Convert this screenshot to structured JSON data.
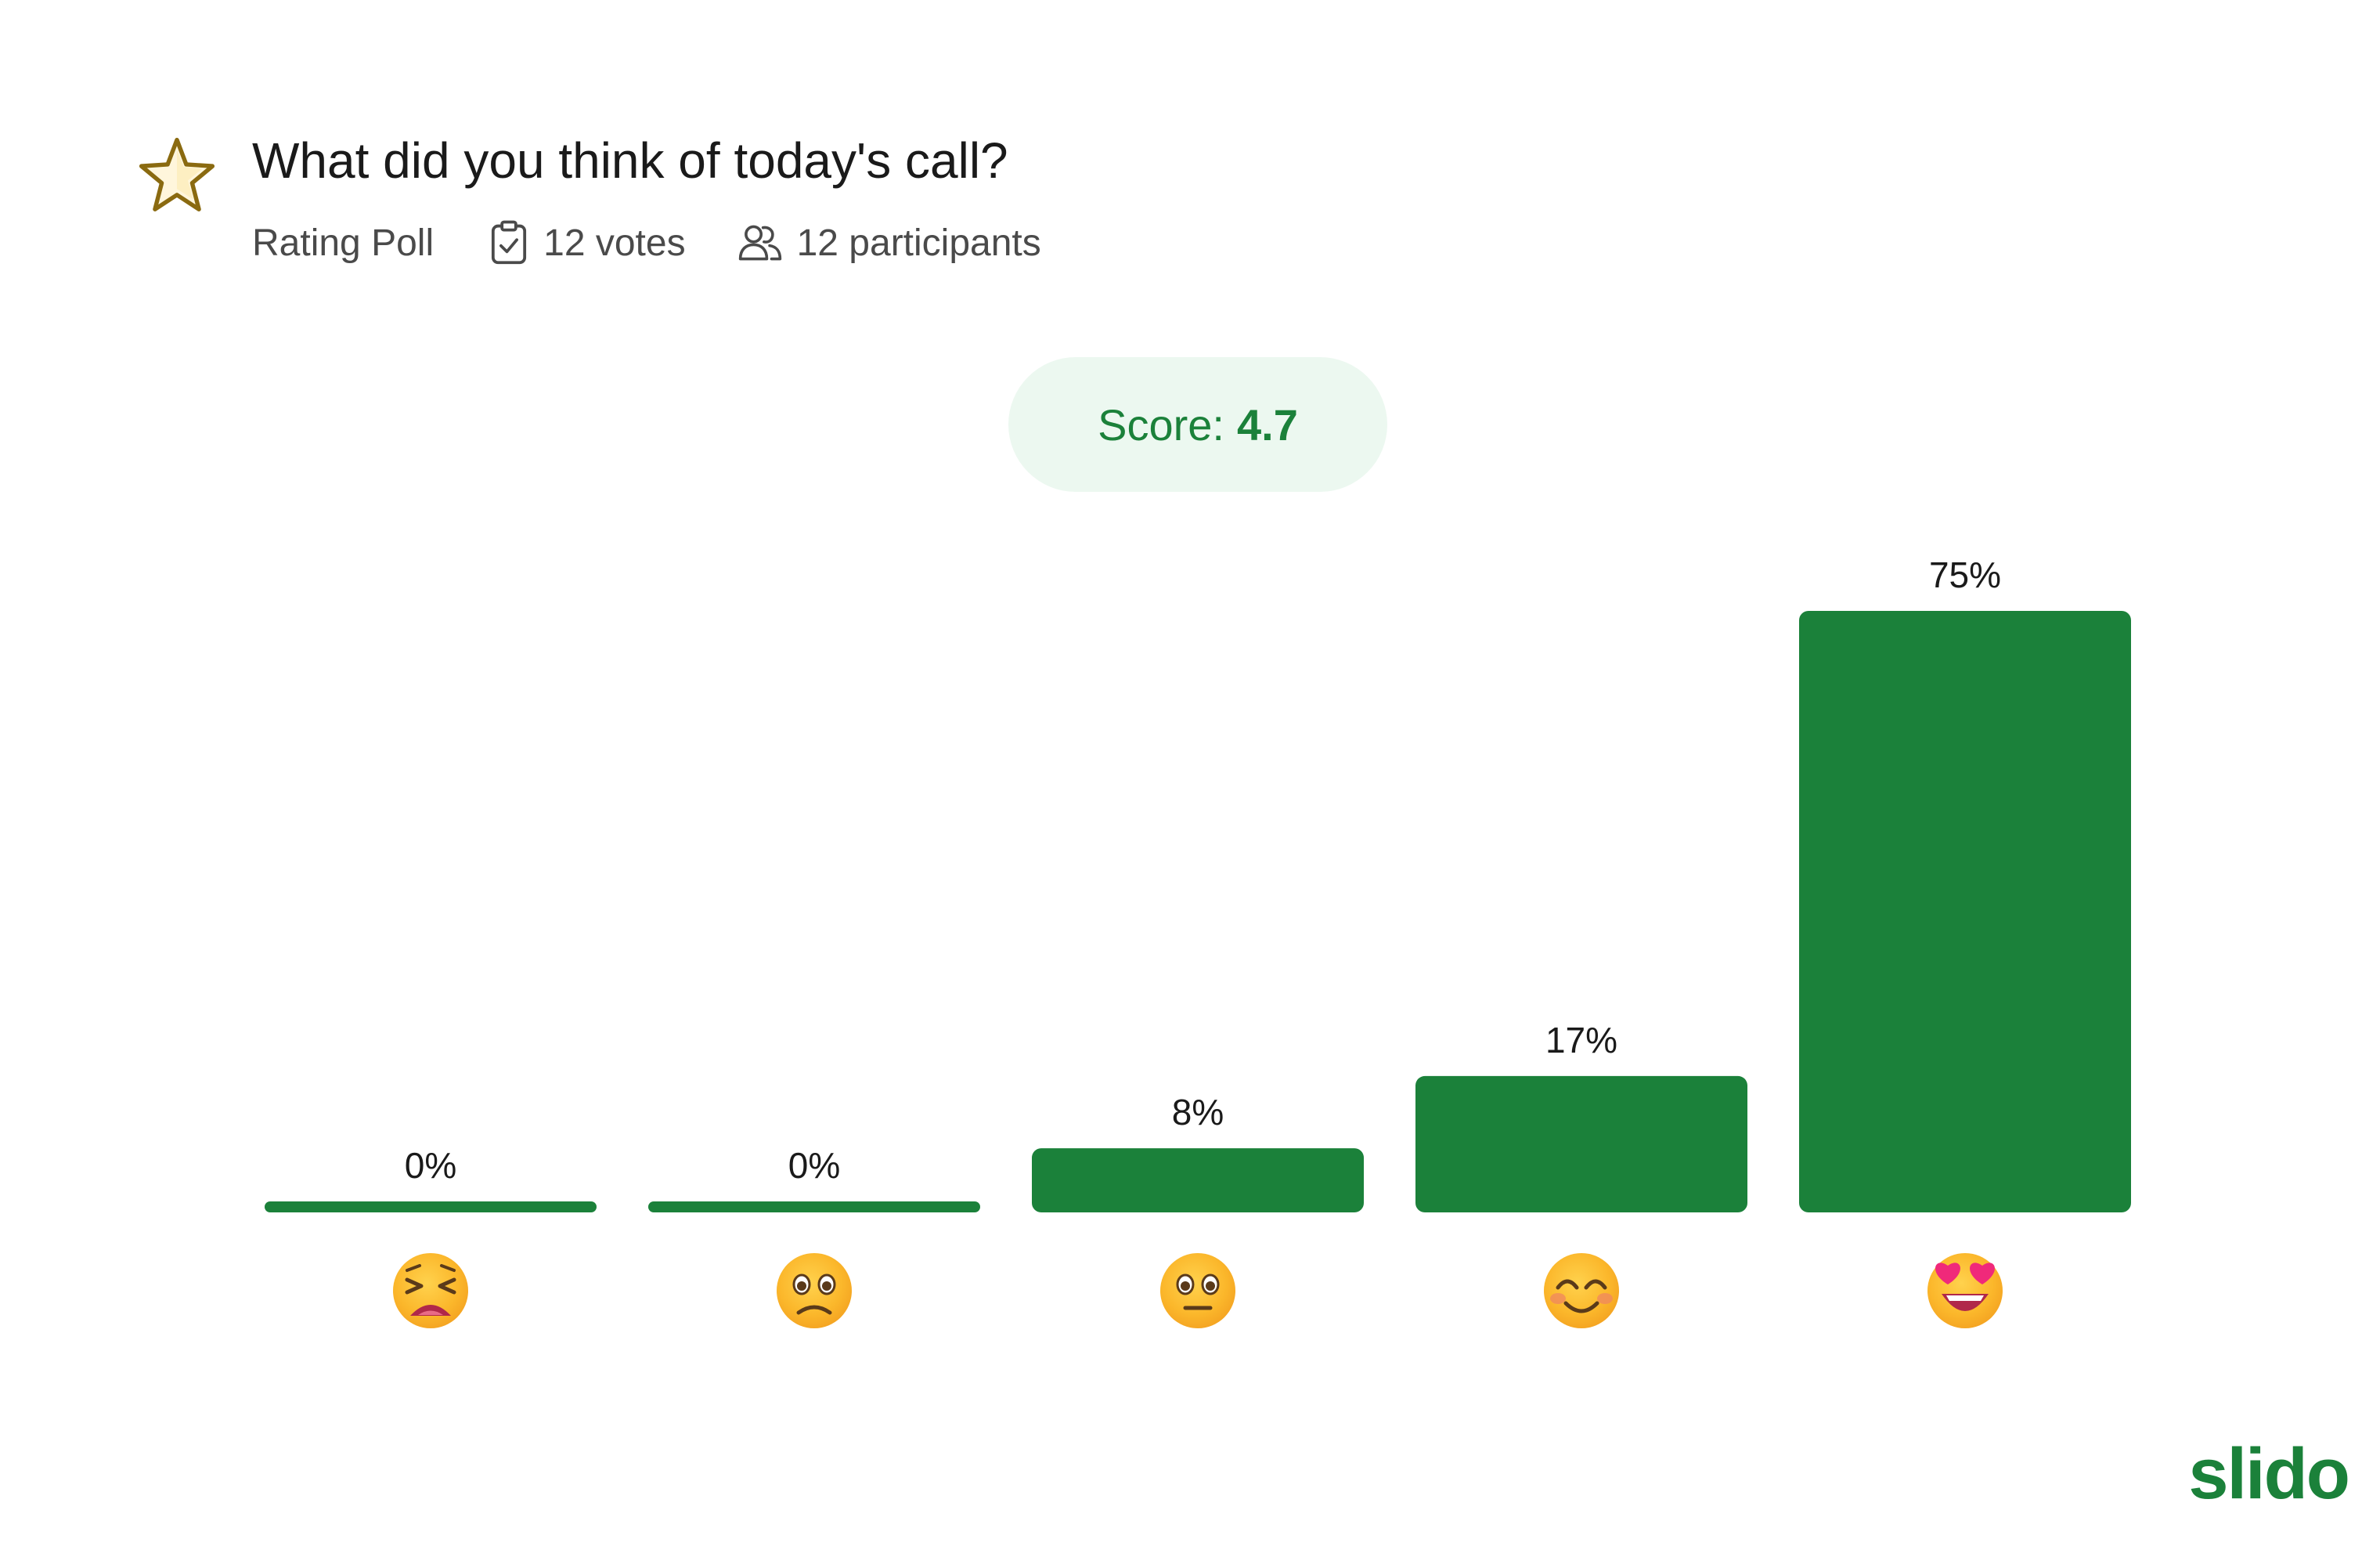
{
  "poll": {
    "title": "What did you think of today's call?",
    "type_label": "Rating Poll",
    "votes_label": "12 votes",
    "participants_label": "12 participants",
    "score_label": "Score:",
    "score_value": "4.7"
  },
  "icons": {
    "poll_type": "star-icon",
    "votes": "clipboard-check-icon",
    "participants": "people-icon"
  },
  "colors": {
    "bar": "#1b813a",
    "score_bg": "#ecf8f0",
    "score_text": "#1b813a",
    "star_outline": "#8a6a10",
    "logo": "#1b813a"
  },
  "chart_data": {
    "type": "bar",
    "categories": [
      "weary-face",
      "frowning-face",
      "neutral-face",
      "smiling-face",
      "heart-eyes-face"
    ],
    "values": [
      0,
      0,
      8,
      17,
      75
    ],
    "value_labels": [
      "0%",
      "0%",
      "8%",
      "17%",
      "75%"
    ],
    "ylim": [
      0,
      75
    ],
    "grid": false
  },
  "branding": {
    "logo_text": "slido"
  }
}
